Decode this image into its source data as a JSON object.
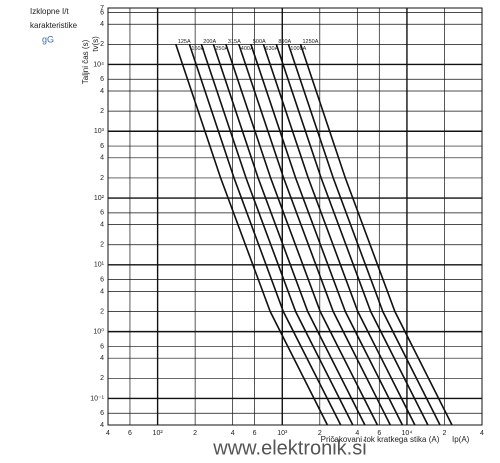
{
  "chart_data": {
    "type": "line",
    "subtitle_lines": [
      "Izklopne I/t",
      "karakteristike",
      "gG"
    ],
    "y_label": "Taljni čas (s)",
    "y_unit_label": "tv(s)",
    "x_label": "Pričakovani tok kratkega stika (A)",
    "x_unit_label": "Ip(A)",
    "watermark": "www.elektronik.si",
    "log_x": true,
    "log_y": true,
    "grid": true,
    "color": "#111111",
    "xlim": [
      40,
      40000
    ],
    "xticks": [
      {
        "value": 40,
        "label": "4"
      },
      {
        "value": 60,
        "label": "6"
      },
      {
        "value": 100,
        "label": "10²"
      },
      {
        "value": 200,
        "label": "2"
      },
      {
        "value": 400,
        "label": "4"
      },
      {
        "value": 600,
        "label": "6"
      },
      {
        "value": 1000,
        "label": "10³"
      },
      {
        "value": 2000,
        "label": "2"
      },
      {
        "value": 4000,
        "label": "4"
      },
      {
        "value": 6000,
        "label": "6"
      },
      {
        "value": 10000,
        "label": "10⁴"
      },
      {
        "value": 20000,
        "label": "2"
      },
      {
        "value": 40000,
        "label": "4"
      }
    ],
    "ylim": [
      0.04,
      70000
    ],
    "yticks": [
      {
        "value": 0.04,
        "label": "4"
      },
      {
        "value": 0.06,
        "label": "6"
      },
      {
        "value": 0.1,
        "label": "10⁻¹"
      },
      {
        "value": 0.2,
        "label": "2"
      },
      {
        "value": 0.4,
        "label": "4"
      },
      {
        "value": 0.6,
        "label": "6"
      },
      {
        "value": 1,
        "label": "10⁰"
      },
      2,
      4,
      6,
      {
        "value": 10,
        "label": "10¹"
      },
      {
        "value": 20,
        "label": "2"
      },
      {
        "value": 40,
        "label": "4"
      },
      {
        "value": 60,
        "label": "6"
      },
      {
        "value": 100,
        "label": "10²"
      },
      {
        "value": 200,
        "label": "2"
      },
      {
        "value": 400,
        "label": "4"
      },
      {
        "value": 600,
        "label": "6"
      },
      {
        "value": 1000,
        "label": "10³"
      },
      {
        "value": 2000,
        "label": "2"
      },
      {
        "value": 4000,
        "label": "4"
      },
      {
        "value": 6000,
        "label": "6"
      },
      {
        "value": 10000,
        "label": "10⁴"
      },
      {
        "value": 20000,
        "label": "2"
      },
      {
        "value": 40000,
        "label": "4"
      },
      {
        "value": 60000,
        "label": "6"
      },
      {
        "value": 70000,
        "label": "7"
      }
    ],
    "series": [
      {
        "name": "125A",
        "x": [
          140,
          320,
          800,
          2300
        ],
        "values": [
          20000,
          200,
          2,
          0.04
        ]
      },
      {
        "name": "160A",
        "x": [
          180,
          410,
          1020,
          2940
        ],
        "values": [
          20000,
          200,
          2,
          0.04
        ]
      },
      {
        "name": "200A",
        "x": [
          224,
          512,
          1280,
          3680
        ],
        "values": [
          20000,
          200,
          2,
          0.04
        ]
      },
      {
        "name": "250A",
        "x": [
          280,
          640,
          1600,
          4600
        ],
        "values": [
          20000,
          200,
          2,
          0.04
        ]
      },
      {
        "name": "315A",
        "x": [
          353,
          806,
          2016,
          5796
        ],
        "values": [
          20000,
          200,
          2,
          0.04
        ]
      },
      {
        "name": "400A",
        "x": [
          448,
          1024,
          2560,
          7360
        ],
        "values": [
          20000,
          200,
          2,
          0.04
        ]
      },
      {
        "name": "500A",
        "x": [
          560,
          1280,
          3200,
          9200
        ],
        "values": [
          20000,
          200,
          2,
          0.04
        ]
      },
      {
        "name": "630A",
        "x": [
          706,
          1613,
          4032,
          11592
        ],
        "values": [
          20000,
          200,
          2,
          0.04
        ]
      },
      {
        "name": "800A",
        "x": [
          896,
          2048,
          5120,
          14720
        ],
        "values": [
          20000,
          200,
          2,
          0.04
        ]
      },
      {
        "name": "1000A",
        "x": [
          1120,
          2560,
          6400,
          18400
        ],
        "values": [
          20000,
          200,
          2,
          0.04
        ]
      },
      {
        "name": "1250A",
        "x": [
          1400,
          3200,
          8000,
          23000
        ],
        "values": [
          20000,
          200,
          2,
          0.04
        ]
      }
    ]
  }
}
